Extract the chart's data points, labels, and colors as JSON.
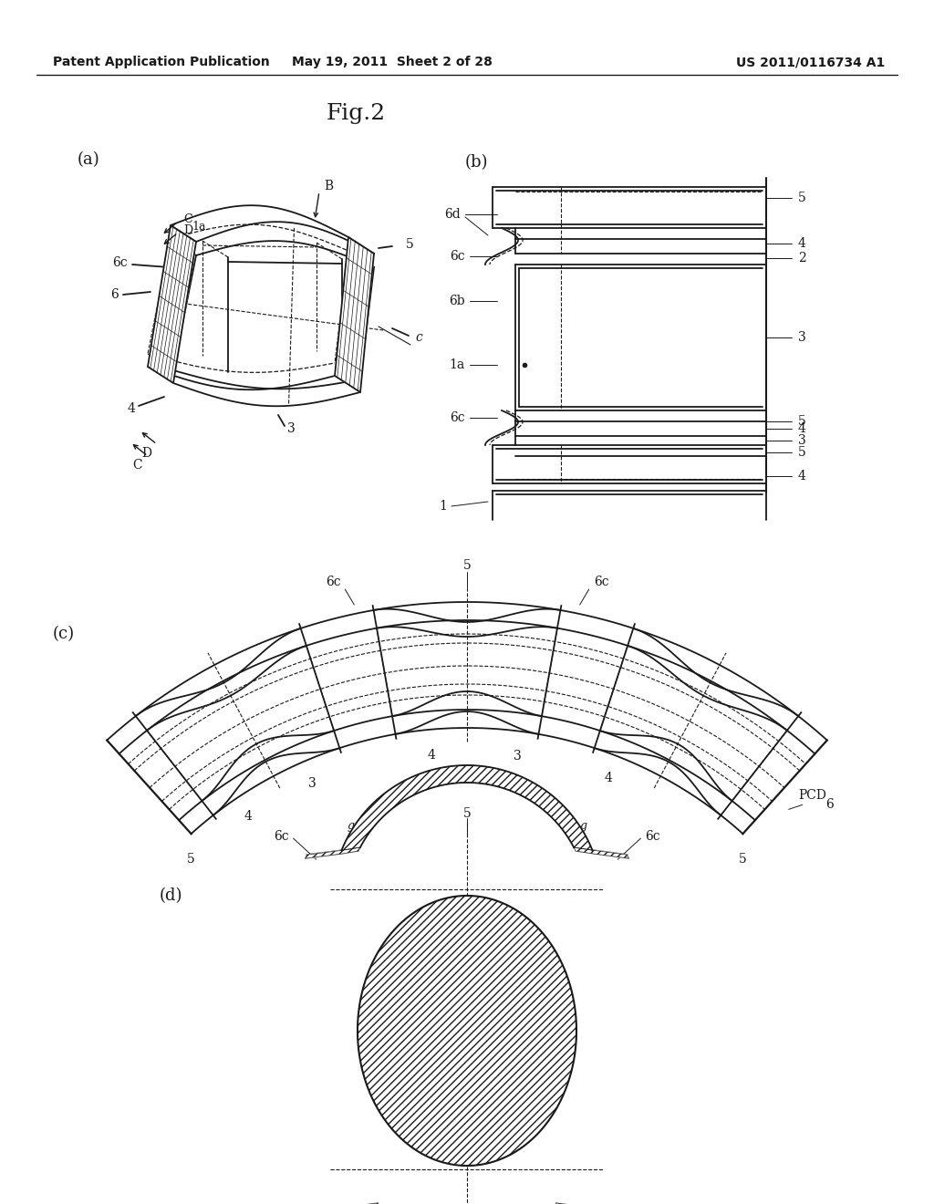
{
  "header_left": "Patent Application Publication",
  "header_center": "May 19, 2011  Sheet 2 of 28",
  "header_right": "US 2011/0116734 A1",
  "figure_title": "Fig.2",
  "bg_color": "#ffffff",
  "line_color": "#1a1a1a"
}
